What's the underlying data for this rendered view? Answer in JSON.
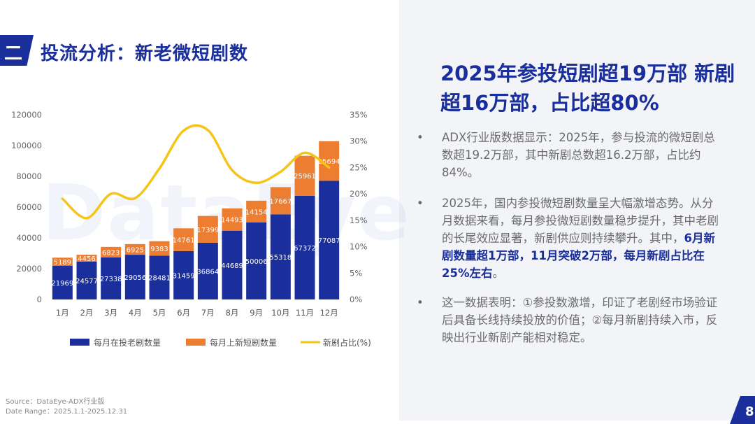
{
  "header": {
    "section_number": "二",
    "title": "投流分析：新老微短剧数"
  },
  "watermark": "DataEye",
  "right": {
    "headline": "2025年参投短剧超19万部 新剧超16万部，占比超80%",
    "bullets": [
      {
        "dot": "•",
        "text": "ADX行业版数据显示：2025年，参与投流的微短剧总数超19.2万部，其中新剧总数超16.2万部，占比约84%。"
      },
      {
        "dot": "•",
        "text_before": "2025年，国内参投微短剧数量呈大幅激增态势。从分月数据来看，每月参投微短剧数量稳步提升，其中老剧的长尾效应显著，新剧供应则持续攀升。其中，",
        "highlight": "6月新剧数量超1万部，11月突破2万部，每月新剧占比在25%左右",
        "text_after": "。"
      },
      {
        "dot": "•",
        "text": "这一数据表明：①参投数激增，印证了老剧经市场验证后具备长线持续投放的价值；②每月新剧持续入市，反映出行业新剧产能相对稳定。"
      }
    ]
  },
  "footer": {
    "source": "Source：DataEye-ADX行业版",
    "date_range": "Date Range：2025.1.1-2025.12.31",
    "page_number": "8"
  },
  "colors": {
    "navy": "#1a2f9c",
    "orange": "#ed7d31",
    "yellow": "#f5c518"
  },
  "chart_data": {
    "type": "bar",
    "stacked": true,
    "categories": [
      "1月",
      "2月",
      "3月",
      "4月",
      "5月",
      "6月",
      "7月",
      "8月",
      "9月",
      "10月",
      "11月",
      "12月"
    ],
    "series": [
      {
        "name": "每月在投老剧数量",
        "values": [
          21969,
          24577,
          27338,
          29056,
          28481,
          31459,
          36864,
          44689,
          50006,
          55318,
          67372,
          77087
        ]
      },
      {
        "name": "每月上新短剧数量",
        "values": [
          5189,
          4456,
          6823,
          6925,
          9383,
          14761,
          17399,
          14493,
          14154,
          17667,
          25961,
          25694
        ]
      },
      {
        "name": "新剧占比(%)",
        "axis": "right",
        "values": [
          19.1,
          15.4,
          20.0,
          19.2,
          24.8,
          32.0,
          32.1,
          24.5,
          22.1,
          24.2,
          27.8,
          25.0
        ]
      }
    ],
    "ylim": [
      0,
      120000
    ],
    "y_ticks": [
      "0",
      "20000",
      "40000",
      "60000",
      "80000",
      "100000",
      "120000"
    ],
    "y2lim": [
      0,
      35
    ],
    "y2_ticks": [
      "0%",
      "5%",
      "10%",
      "15%",
      "20%",
      "25%",
      "30%",
      "35%"
    ],
    "legend": "bottom"
  }
}
